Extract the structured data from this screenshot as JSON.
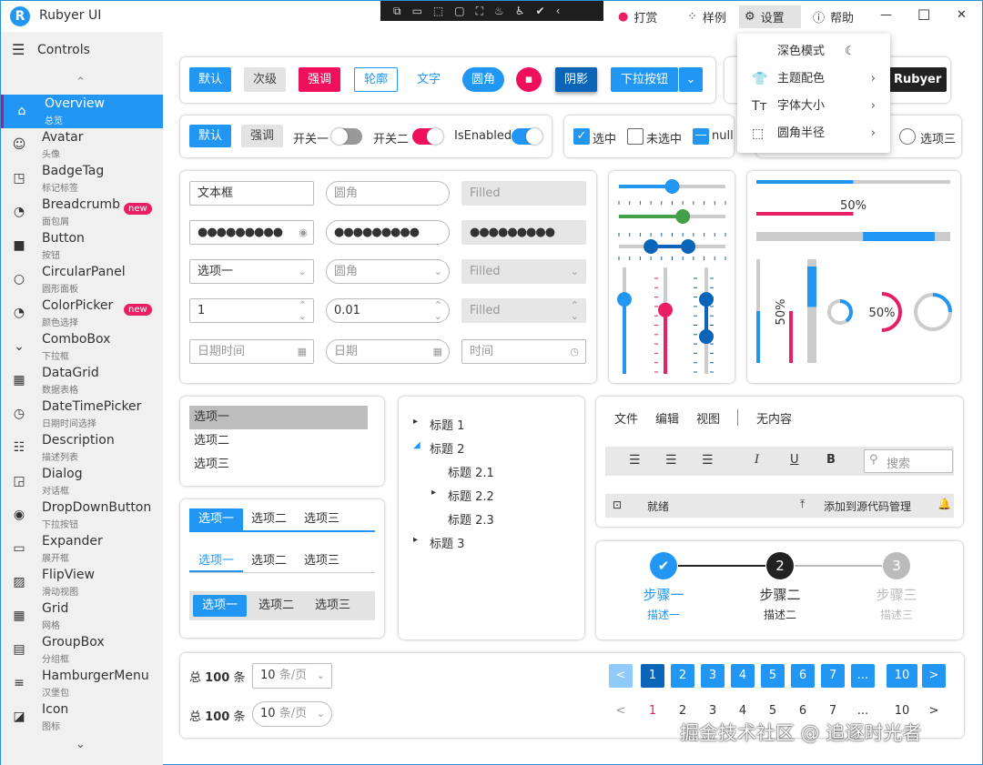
{
  "app": {
    "title": "Rubyer UI",
    "logo": "R"
  },
  "devtools": [
    "⧉",
    "▭",
    "⬚",
    "▢",
    "⛶",
    "♨",
    "♿",
    "✔",
    "‹"
  ],
  "titlebar": {
    "reward": "打赏",
    "samples": "样例",
    "settings": "设置",
    "help": "帮助",
    "minimize": "—",
    "maximize": "☐",
    "close": "✕"
  },
  "sidebar": {
    "header": "Controls",
    "items": [
      {
        "label": "Overview",
        "sub": "总览",
        "icon": "⌂"
      },
      {
        "label": "Avatar",
        "sub": "头像",
        "icon": "☺"
      },
      {
        "label": "BadgeTag",
        "sub": "标记标签",
        "icon": "◳"
      },
      {
        "label": "Breadcrumb",
        "sub": "面包屑",
        "icon": "◔",
        "badge": "new"
      },
      {
        "label": "Button",
        "sub": "按钮",
        "icon": "■"
      },
      {
        "label": "CircularPanel",
        "sub": "圆形面板",
        "icon": "○"
      },
      {
        "label": "ColorPicker",
        "sub": "颜色选择",
        "icon": "◔",
        "badge": "new"
      },
      {
        "label": "ComboBox",
        "sub": "下拉框",
        "icon": "⌄"
      },
      {
        "label": "DataGrid",
        "sub": "数据表格",
        "icon": "▦"
      },
      {
        "label": "DateTimePicker",
        "sub": "日期时间选择",
        "icon": "◷"
      },
      {
        "label": "Description",
        "sub": "描述列表",
        "icon": "☷"
      },
      {
        "label": "Dialog",
        "sub": "对话框",
        "icon": "◲"
      },
      {
        "label": "DropDownButton",
        "sub": "下拉按钮",
        "icon": "◉"
      },
      {
        "label": "Expander",
        "sub": "展开框",
        "icon": "▭"
      },
      {
        "label": "FlipView",
        "sub": "滑动视图",
        "icon": "▨"
      },
      {
        "label": "Grid",
        "sub": "网格",
        "icon": "▦"
      },
      {
        "label": "GroupBox",
        "sub": "分组框",
        "icon": "▤"
      },
      {
        "label": "HamburgerMenu",
        "sub": "汉堡包",
        "icon": "≡"
      },
      {
        "label": "Icon",
        "sub": "图标",
        "icon": "◪"
      }
    ]
  },
  "buttons": {
    "default": "默认",
    "secondary": "次级",
    "accent": "强调",
    "outline": "轮廓",
    "text": "文字",
    "round": "圆角",
    "shadow": "阴影",
    "dropdown": "下拉按钮",
    "rubyer": "Rubyer"
  },
  "toggles": {
    "default": "默认",
    "accent": "强调",
    "switch1": "开关一",
    "switch2": "开关二",
    "switch3": "IsEnabled",
    "switch1_on": false,
    "switch2_on": true,
    "switch3_on": true
  },
  "checkboxes": {
    "checked": "选中",
    "unchecked": "未选中",
    "null": "null"
  },
  "radio": {
    "option3": "选项三"
  },
  "settings_menu": {
    "dark": "深色模式",
    "theme": "主题配色",
    "font": "字体大小",
    "radius": "圆角半径"
  },
  "form": {
    "text_value": "文本框",
    "round_ph": "圆角",
    "filled_ph": "Filled",
    "password": "●●●●●●●●●",
    "combo_value": "选项一",
    "combo_round_ph": "圆角",
    "combo_filled_ph": "Filled",
    "num1": "1",
    "num2": "0.01",
    "num_filled_ph": "Filled",
    "datetime_ph": "日期时间",
    "date_ph": "日期",
    "time_ph": "时间"
  },
  "sliders": {
    "h1": 0.5,
    "h2": 0.6,
    "range": [
      0.3,
      0.65
    ],
    "v1": 0.7,
    "v2": 0.6,
    "vrange": [
      0.35,
      0.7
    ],
    "colors": {
      "blue": "#2196f3",
      "green": "#43a047",
      "dark": "#0a64b8",
      "pink": "#e91e63"
    }
  },
  "progress": {
    "bar1": 0.5,
    "bar2": 0.5,
    "bar2_label": "50%",
    "bar3": [
      0.55,
      0.92
    ],
    "v1": 0.5,
    "v2": 0.5,
    "v2_label": "50%",
    "v3": [
      0.07,
      0.46
    ],
    "ring1": 0.4,
    "ring2": 0.5,
    "ring2_label": "50%",
    "ring3": 0.25
  },
  "listbox": [
    "选项一",
    "选项二",
    "选项三"
  ],
  "tabs": [
    "选项一",
    "选项二",
    "选项三"
  ],
  "tree": [
    {
      "label": "标题 1",
      "arrow": "▸",
      "indent": 0
    },
    {
      "label": "标题 2",
      "arrow": "◢",
      "indent": 0
    },
    {
      "label": "标题 2.1",
      "arrow": "",
      "indent": 1
    },
    {
      "label": "标题 2.2",
      "arrow": "▸",
      "indent": 1
    },
    {
      "label": "标题 2.3",
      "arrow": "",
      "indent": 1
    },
    {
      "label": "标题 3",
      "arrow": "▸",
      "indent": 0
    }
  ],
  "menubar": [
    "文件",
    "编辑",
    "视图",
    "无内容"
  ],
  "toolbar": {
    "search_ph": "搜索"
  },
  "statusbar": {
    "ready": "就绪",
    "source": "添加到源代码管理"
  },
  "steps": [
    {
      "title": "步骤一",
      "desc": "描述一",
      "num": "✔"
    },
    {
      "title": "步骤二",
      "desc": "描述二",
      "num": "2"
    },
    {
      "title": "步骤三",
      "desc": "描述三",
      "num": "3"
    }
  ],
  "pagination": {
    "total_prefix": "总",
    "total": "100",
    "total_suffix": "条",
    "page_size": "10",
    "page_unit": "条/页",
    "pages": [
      "<",
      "1",
      "2",
      "3",
      "4",
      "5",
      "6",
      "7",
      "...",
      "10",
      ">"
    ],
    "current": "1"
  },
  "watermark": "掘金技术社区 @ 追逐时光者"
}
